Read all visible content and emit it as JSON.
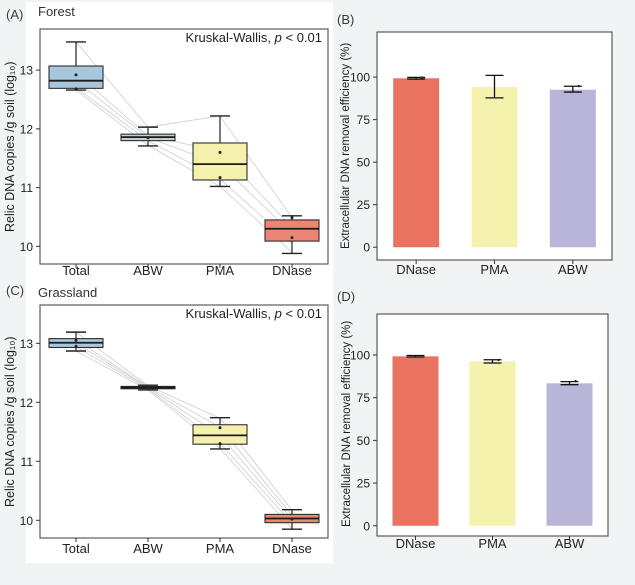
{
  "figure": {
    "background": "#f1f3f5",
    "panel_surface": "#ffffff",
    "frame_color": "#4d4d4d",
    "text_color": "#222222",
    "pair_line_color": "#d2d2d2"
  },
  "chart_data": [
    {
      "id": "A",
      "type": "boxplot",
      "panel_label": "(A)",
      "title": "Forest",
      "annotation": {
        "prefix": "Kruskal-Wallis, ",
        "italic": "p",
        "suffix": " < 0.01"
      },
      "ylabel": "Relic DNA copies /g soil (log₁₀)",
      "xlabel": "",
      "categories": [
        "Total",
        "ABW",
        "PMA",
        "DNase"
      ],
      "yticks": [
        10,
        11,
        12,
        13
      ],
      "ylim": [
        9.7,
        13.7
      ],
      "grid": false,
      "boxes": [
        {
          "category": "Total",
          "fill": "#a9c7dc",
          "whisker_low": 12.66,
          "q1": 12.69,
          "median": 12.82,
          "q3": 13.07,
          "whisker_high": 13.48,
          "points": [
            12.92,
            12.68
          ]
        },
        {
          "category": "ABW",
          "fill": "#c6cdd6",
          "whisker_low": 11.71,
          "q1": 11.8,
          "median": 11.86,
          "q3": 11.91,
          "whisker_high": 12.03,
          "points": [
            11.85
          ]
        },
        {
          "category": "PMA",
          "fill": "#f5f1ad",
          "whisker_low": 11.02,
          "q1": 11.13,
          "median": 11.4,
          "q3": 11.76,
          "whisker_high": 12.22,
          "points": [
            11.6,
            11.17
          ]
        },
        {
          "category": "DNase",
          "fill": "#ed8576",
          "whisker_low": 9.88,
          "q1": 10.09,
          "median": 10.3,
          "q3": 10.45,
          "whisker_high": 10.52,
          "points": [
            10.49,
            10.15
          ]
        }
      ],
      "pairs": [
        [
          13.48,
          12.03,
          12.22,
          10.49
        ],
        [
          12.95,
          11.88,
          11.62,
          10.32
        ],
        [
          12.82,
          11.85,
          11.4,
          10.22
        ],
        [
          12.7,
          11.8,
          11.15,
          10.05
        ],
        [
          12.66,
          11.72,
          11.02,
          9.9
        ]
      ]
    },
    {
      "id": "B",
      "type": "bar",
      "panel_label": "(B)",
      "title": "",
      "ylabel": "Extracellular DNA removal efficiency (%)",
      "xlabel": "",
      "categories": [
        "DNase",
        "PMA",
        "ABW"
      ],
      "values": [
        99.3,
        94.2,
        92.6
      ],
      "errors_low": [
        98.8,
        87.8,
        91.2
      ],
      "errors_high": [
        99.8,
        101.0,
        94.6
      ],
      "points": [
        [
          99.7
        ],
        [],
        [
          94.7
        ]
      ],
      "colors": [
        "#e97261",
        "#f5f2ae",
        "#b9b5d8"
      ],
      "yticks": [
        0,
        25,
        50,
        75,
        100
      ],
      "ylim": [
        -7.5,
        126.5
      ],
      "grid": false
    },
    {
      "id": "C",
      "type": "boxplot",
      "panel_label": "(C)",
      "title": "Grassland",
      "annotation": {
        "prefix": "Kruskal-Wallis, ",
        "italic": "p",
        "suffix": " < 0.01"
      },
      "ylabel": "Relic DNA copies /g soil (log₁₀)",
      "xlabel": "",
      "categories": [
        "Total",
        "ABW",
        "PMA",
        "DNase"
      ],
      "yticks": [
        10,
        11,
        12,
        13
      ],
      "ylim": [
        9.7,
        13.65
      ],
      "grid": false,
      "boxes": [
        {
          "category": "Total",
          "fill": "#a9c7dc",
          "whisker_low": 12.87,
          "q1": 12.93,
          "median": 13.01,
          "q3": 13.08,
          "whisker_high": 13.19,
          "points": [
            13.05,
            12.95
          ]
        },
        {
          "category": "ABW",
          "fill": "#464b52",
          "whisker_low": 12.21,
          "q1": 12.23,
          "median": 12.25,
          "q3": 12.27,
          "whisker_high": 12.29,
          "points": [
            12.25
          ]
        },
        {
          "category": "PMA",
          "fill": "#f5f1ad",
          "whisker_low": 11.21,
          "q1": 11.29,
          "median": 11.44,
          "q3": 11.62,
          "whisker_high": 11.74,
          "points": [
            11.57,
            11.3
          ]
        },
        {
          "category": "DNase",
          "fill": "#ed8576",
          "whisker_low": 9.85,
          "q1": 9.96,
          "median": 10.03,
          "q3": 10.1,
          "whisker_high": 10.18,
          "points": [
            10.02
          ]
        }
      ],
      "pairs": [
        [
          13.19,
          12.28,
          11.73,
          10.17
        ],
        [
          13.06,
          12.26,
          11.58,
          10.08
        ],
        [
          13.0,
          12.25,
          11.44,
          10.02
        ],
        [
          12.94,
          12.23,
          11.31,
          9.95
        ],
        [
          12.87,
          12.21,
          11.22,
          9.86
        ]
      ]
    },
    {
      "id": "D",
      "type": "bar",
      "panel_label": "(D)",
      "title": "",
      "ylabel": "Extracellular DNA removal efficiency (%)",
      "xlabel": "",
      "categories": [
        "DNase",
        "PMA",
        "ABW"
      ],
      "values": [
        99.2,
        96.2,
        83.4
      ],
      "errors_low": [
        98.8,
        95.3,
        82.6
      ],
      "errors_high": [
        99.7,
        97.2,
        84.4
      ],
      "points": [
        [],
        [
          97.1
        ],
        [
          84.7
        ]
      ],
      "colors": [
        "#e97261",
        "#f5f2ae",
        "#b9b5d8"
      ],
      "yticks": [
        0,
        25,
        50,
        75,
        100
      ],
      "ylim": [
        -6,
        124
      ],
      "grid": false
    }
  ]
}
